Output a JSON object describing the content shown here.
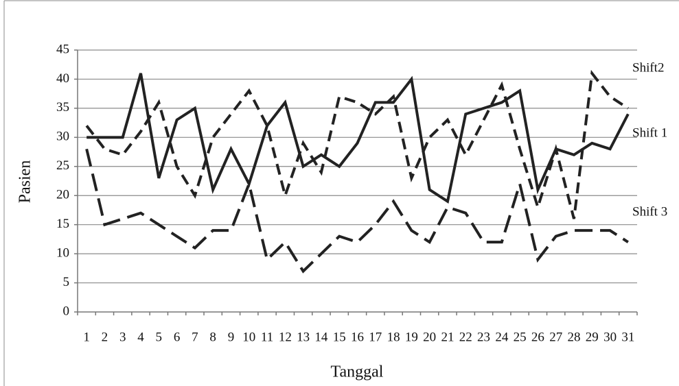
{
  "chart_data": {
    "type": "line",
    "x_label": "Tanggal",
    "y_label": "Pasien",
    "categories": [
      "1",
      "2",
      "3",
      "4",
      "5",
      "6",
      "7",
      "8",
      "9",
      "10",
      "11",
      "12",
      "13",
      "14",
      "15",
      "16",
      "17",
      "18",
      "19",
      "20",
      "21",
      "22",
      "23",
      "24",
      "25",
      "26",
      "27",
      "28",
      "29",
      "30",
      "31"
    ],
    "series": [
      {
        "name": "Shift 1",
        "color": "#222222",
        "line_style": "solid",
        "values": [
          30,
          30,
          30,
          41,
          23,
          33,
          35,
          21,
          28,
          22,
          32,
          36,
          25,
          27,
          25,
          29,
          36,
          36,
          40,
          21,
          19,
          34,
          35,
          36,
          38,
          21,
          28,
          27,
          29,
          28,
          34
        ]
      },
      {
        "name": "Shift2",
        "color": "#222222",
        "line_style": "dashed",
        "values": [
          32,
          28,
          27,
          31,
          36,
          25,
          20,
          30,
          34,
          38,
          32,
          20,
          29,
          24,
          37,
          36,
          34,
          37,
          23,
          30,
          33,
          27,
          33,
          39,
          28,
          18,
          28,
          16,
          41,
          37,
          35
        ]
      },
      {
        "name": "Shift 3",
        "color": "#222222",
        "line_style": "long-dashed",
        "values": [
          28,
          15,
          16,
          17,
          15,
          13,
          11,
          14,
          14,
          22,
          9,
          12,
          7,
          10,
          13,
          12,
          15,
          19,
          14,
          12,
          18,
          17,
          12,
          12,
          22,
          9,
          13,
          14,
          14,
          14,
          12
        ]
      }
    ],
    "ylim": [
      0,
      45
    ],
    "yticks": [
      0,
      5,
      10,
      15,
      20,
      25,
      30,
      35,
      40,
      45
    ],
    "grid": true
  }
}
